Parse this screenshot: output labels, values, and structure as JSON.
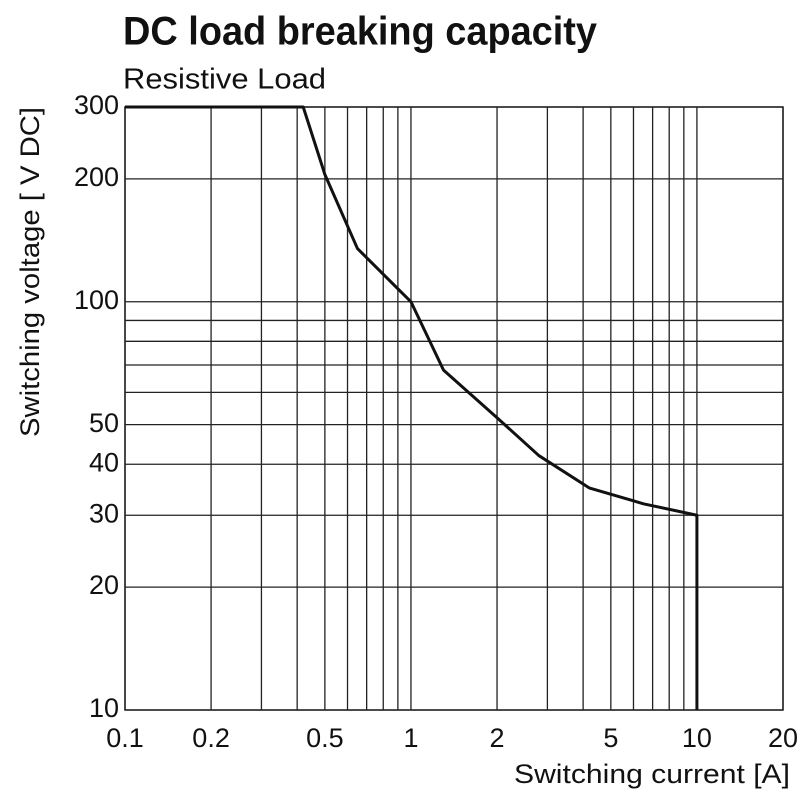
{
  "chart_data": {
    "type": "line",
    "title": "DC load breaking capacity",
    "subtitle": "Resistive Load",
    "x_label": "Switching current [A]",
    "y_label": "Switching voltage [ V DC]",
    "x_scale": "log",
    "y_scale": "log",
    "grid": true,
    "xlim": [
      0.1,
      20
    ],
    "ylim": [
      10,
      300
    ],
    "xticks": [
      0.1,
      0.2,
      0.5,
      1,
      2,
      5,
      10,
      20
    ],
    "x_minor_ticks": [
      0.3,
      0.4,
      0.6,
      0.7,
      0.8,
      0.9,
      3,
      4,
      6,
      7,
      8,
      9
    ],
    "yticks": [
      10,
      20,
      30,
      40,
      50,
      100,
      200,
      300
    ],
    "y_minor_ticks": [
      60,
      70,
      80,
      90
    ],
    "series": [
      {
        "color": "#111111",
        "x": [
          0.1,
          0.42,
          0.5,
          0.65,
          1,
          1.3,
          2,
          2.8,
          4.2,
          6.5,
          10,
          10
        ],
        "values": [
          300,
          300,
          205,
          135,
          100,
          68,
          52,
          42,
          35,
          32,
          30,
          10
        ]
      }
    ]
  }
}
